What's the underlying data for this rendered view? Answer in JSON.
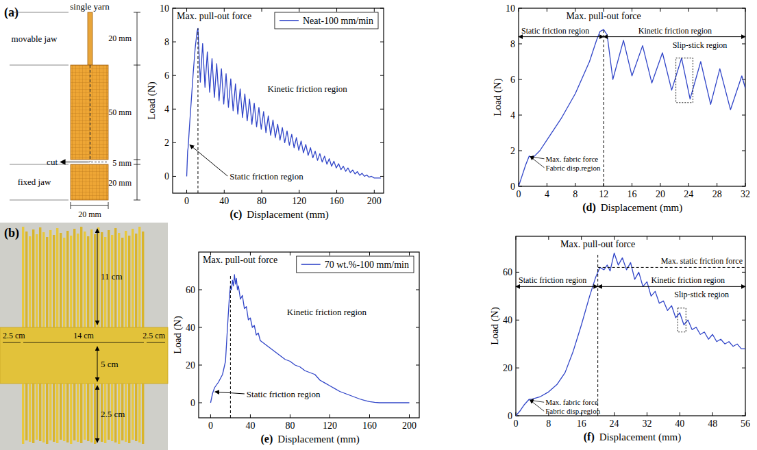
{
  "chart_data": [
    {
      "type": "line",
      "panel": "(c)",
      "x_label": "Displacement (mm)",
      "y_label": "Load (N)",
      "xlim": [
        -15,
        210
      ],
      "xticks": [
        0,
        40,
        80,
        120,
        160,
        200
      ],
      "ylim": [
        -1,
        10
      ],
      "yticks": [
        0,
        2,
        4,
        6,
        8,
        10
      ],
      "legend": "upper right",
      "series": [
        {
          "name": "Neat-100 mm/min",
          "color": "#3045c8",
          "x": [
            0,
            1,
            1.5,
            3,
            5,
            7,
            9,
            11,
            12,
            14.5,
            17,
            19.5,
            22,
            24.5,
            27,
            29.5,
            32,
            34.5,
            37,
            39.5,
            42,
            44.5,
            47,
            49.5,
            52,
            54.5,
            57,
            59.5,
            62,
            64.5,
            67,
            69.5,
            72,
            74.5,
            77,
            79.5,
            82,
            84.5,
            87,
            89.5,
            92,
            94.5,
            97,
            99.5,
            102,
            104.5,
            107,
            109.5,
            112,
            114.5,
            117,
            119.5,
            122,
            124.5,
            127,
            129.5,
            132,
            134.5,
            137,
            139.5,
            142,
            144.5,
            147,
            149.5,
            152,
            154.5,
            157,
            159.5,
            162,
            164.5,
            167,
            169.5,
            172,
            174.5,
            177,
            179.5,
            182,
            184.5,
            187,
            189.5,
            192,
            194.5,
            197,
            200,
            207
          ],
          "values": [
            0,
            1.5,
            1.7,
            3.0,
            4.6,
            6.2,
            7.6,
            8.6,
            8.8,
            5.6,
            7.9,
            5.3,
            7.4,
            5.0,
            7.0,
            4.7,
            6.7,
            4.5,
            6.4,
            4.3,
            6.1,
            4.1,
            5.8,
            3.9,
            5.5,
            3.7,
            5.2,
            3.5,
            4.9,
            3.3,
            4.6,
            3.1,
            4.35,
            2.95,
            4.1,
            2.8,
            3.85,
            2.6,
            3.6,
            2.45,
            3.35,
            2.3,
            3.1,
            2.15,
            2.9,
            2.0,
            2.7,
            1.85,
            2.5,
            1.7,
            2.3,
            1.55,
            2.1,
            1.4,
            1.9,
            1.25,
            1.7,
            1.1,
            1.5,
            0.95,
            1.35,
            0.85,
            1.2,
            0.72,
            1.05,
            0.6,
            0.9,
            0.5,
            0.75,
            0.4,
            0.6,
            0.3,
            0.5,
            0.22,
            0.38,
            0.14,
            0.28,
            0.06,
            0.18,
            0.0,
            0.08,
            -0.05,
            0.0,
            -0.1,
            -0.1
          ]
        }
      ],
      "peak_label": "Max. pull-out force",
      "peak_x": 12,
      "regions": [
        {
          "text": "Static friction region",
          "x": [
            0,
            12
          ]
        },
        {
          "text": "Kinetic friction region"
        }
      ]
    },
    {
      "type": "line",
      "panel": "(d)",
      "x_label": "Displacement (mm)",
      "y_label": "Load (N)",
      "xlim": [
        0,
        32
      ],
      "xticks": [
        0,
        4,
        8,
        12,
        16,
        20,
        24,
        28,
        32
      ],
      "ylim": [
        0,
        10
      ],
      "yticks": [
        0,
        2,
        4,
        6,
        8,
        10
      ],
      "series": [
        {
          "color": "#3045c8",
          "x": [
            0,
            0.5,
            1,
            1.5,
            2,
            3,
            4,
            6,
            8,
            10,
            11,
            11.5,
            12,
            12.5,
            13.3,
            14.8,
            16,
            17.5,
            18.8,
            20.3,
            21.6,
            23,
            24.2,
            25.7,
            27.1,
            28.4,
            29.9,
            31.5,
            32
          ],
          "values": [
            0,
            0.6,
            1.2,
            1.7,
            1.6,
            2.0,
            2.6,
            3.8,
            5.2,
            7.0,
            8.2,
            8.7,
            8.8,
            8.5,
            6.0,
            8.2,
            6.2,
            7.9,
            5.8,
            7.5,
            5.4,
            7.2,
            4.9,
            7.0,
            4.6,
            6.6,
            4.3,
            6.2,
            5.5
          ]
        }
      ],
      "peak_label": "Max. pull-out force",
      "peak_x": 12,
      "regions": [
        {
          "text": "Static friction region",
          "x": [
            0,
            12
          ]
        },
        {
          "text": "Kinetic friction region",
          "x": [
            12,
            32
          ]
        }
      ],
      "slip_stick": {
        "text": "Slip-stick region",
        "x": [
          22.2,
          24.6
        ],
        "y": [
          4.7,
          7.2
        ]
      },
      "fabric": {
        "labels": [
          "Max. fabric force",
          "Fabric disp.region"
        ],
        "x": 1.5,
        "y": 1.7
      }
    },
    {
      "type": "line",
      "panel": "(e)",
      "x_label": "Displacement (mm)",
      "y_label": "Load (N)",
      "xlim": [
        -12,
        210
      ],
      "xticks": [
        0,
        40,
        80,
        120,
        160,
        200
      ],
      "ylim": [
        -8,
        80
      ],
      "yticks": [
        0,
        20,
        40,
        60
      ],
      "legend": "upper right",
      "series": [
        {
          "name": "70 wt.%-100 mm/min",
          "color": "#3045c8",
          "x": [
            0,
            2,
            4,
            8,
            12,
            15,
            17,
            19,
            20,
            21,
            22,
            23,
            24,
            25,
            26,
            27,
            28,
            30,
            32,
            34,
            36,
            38,
            40,
            42,
            44,
            46,
            48,
            50,
            55,
            60,
            65,
            70,
            75,
            80,
            85,
            90,
            95,
            100,
            105,
            110,
            115,
            120,
            125,
            130,
            135,
            140,
            145,
            150,
            155,
            160,
            165,
            170,
            200
          ],
          "values": [
            0,
            5,
            8,
            11,
            15,
            22,
            40,
            57,
            62,
            60,
            65,
            62,
            68,
            63,
            66,
            60,
            62,
            55,
            57,
            50,
            51,
            44,
            45,
            40,
            41,
            36,
            37,
            33,
            31,
            29,
            27,
            25,
            23,
            22,
            20,
            19,
            17,
            16,
            15,
            12,
            10.5,
            9,
            7.5,
            6,
            5,
            4,
            3,
            2,
            1.2,
            0.6,
            0.2,
            0,
            0
          ]
        }
      ],
      "peak_label": "Max. pull-out force",
      "peak_x": 20,
      "regions": [
        {
          "text": "Static friction region",
          "x": [
            0,
            20
          ]
        },
        {
          "text": "Kinetic friction region"
        }
      ]
    },
    {
      "type": "line",
      "panel": "(f)",
      "x_label": "Displacement (mm)",
      "y_label": "Load (N)",
      "xlim": [
        0,
        56
      ],
      "xticks": [
        0,
        8,
        16,
        24,
        32,
        40,
        48,
        56
      ],
      "ylim": [
        0,
        75
      ],
      "yticks": [
        0,
        20,
        40,
        60
      ],
      "series": [
        {
          "color": "#3045c8",
          "x": [
            0,
            1,
            2,
            3.2,
            4,
            6,
            8,
            10,
            12,
            14,
            16,
            18,
            19.5,
            20.5,
            21.5,
            22.3,
            23,
            24,
            25,
            26,
            27,
            28,
            29,
            30,
            31,
            32,
            33,
            34,
            35,
            36,
            37,
            38,
            39,
            40,
            41,
            42,
            43,
            44,
            45,
            46,
            47,
            48,
            49,
            50,
            51,
            52,
            53,
            54,
            55,
            56
          ],
          "values": [
            0,
            2,
            4.5,
            6.8,
            7,
            8,
            10,
            13,
            18,
            27,
            38,
            50,
            58,
            62,
            61,
            63,
            60.5,
            68,
            63,
            66,
            61,
            64,
            57,
            60,
            54,
            56,
            50,
            52,
            47,
            48,
            44,
            46,
            41,
            43,
            38,
            40,
            36,
            37,
            34,
            35,
            32,
            34,
            31,
            32,
            30,
            31,
            29,
            30,
            28,
            28
          ]
        }
      ],
      "peak_label": "Max. pull-out force",
      "peak_x": 20,
      "hline": {
        "text": "Max. static friction force",
        "value": 62
      },
      "regions": [
        {
          "text": "Static friction region",
          "x": [
            0,
            20
          ]
        },
        {
          "text": "Kinetic friction region",
          "x": [
            20,
            56
          ]
        }
      ],
      "slip_stick": {
        "text": "Slip-stick region",
        "x": [
          39.5,
          41.5
        ],
        "y": [
          35,
          45
        ]
      },
      "fabric": {
        "labels": [
          "Max. fabric force",
          "Fabric disp.region"
        ],
        "x": 3.2,
        "y": 6.8
      }
    }
  ],
  "diagram": {
    "panel": "(a)",
    "yarn": "single yarn",
    "movable_jaw": "movable jaw",
    "fixed_jaw": "fixed jaw",
    "cut": "cut",
    "yarn_length": "20 mm",
    "fabric_length": "50 mm",
    "cut_gap": "5 mm",
    "jaw_length": "20 mm",
    "width": "20 mm"
  },
  "photo": {
    "panel": "(b)",
    "fringe_length": "11 cm",
    "left_margin": "2.5 cm",
    "width": "14 cm",
    "right_margin": "2.5 cm",
    "band_height": "5 cm",
    "bottom_fringe": "2.5 cm"
  }
}
